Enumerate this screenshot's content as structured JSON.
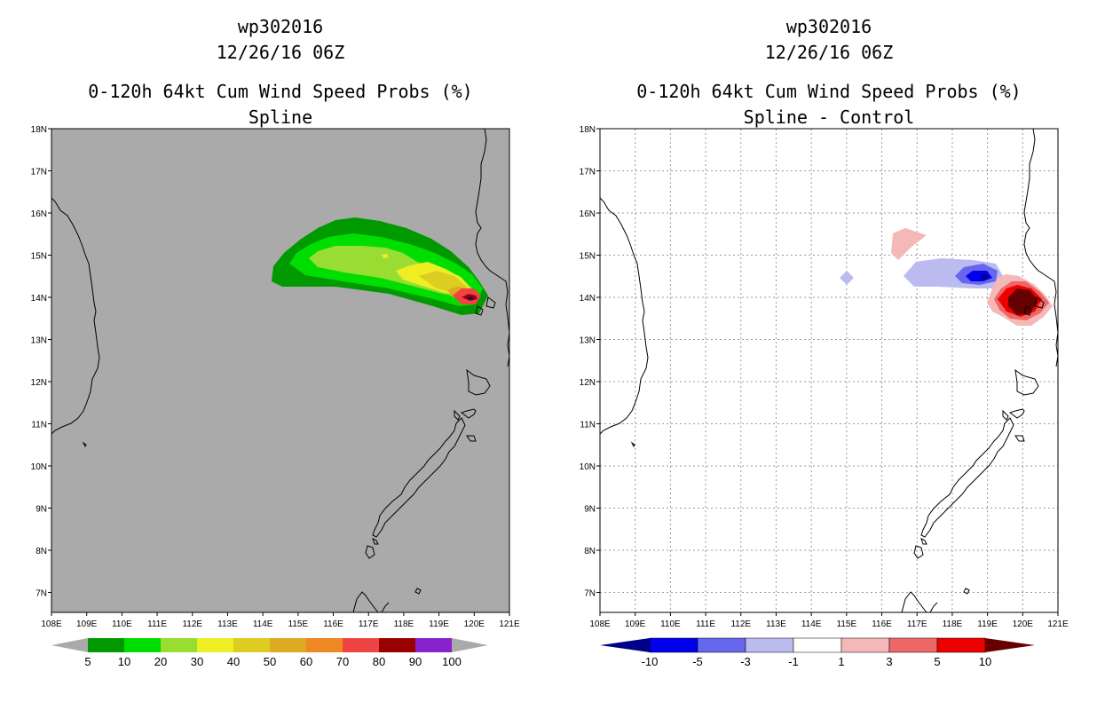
{
  "left_panel": {
    "title_lines": [
      "wp302016",
      "12/26/16 06Z",
      "0-120h 64kt Cum Wind Speed Probs (%)",
      "Spline"
    ],
    "legend": {
      "labels": [
        "5",
        "10",
        "20",
        "30",
        "40",
        "50",
        "60",
        "70",
        "80",
        "90",
        "100"
      ],
      "colors": [
        "#009900",
        "#00dd00",
        "#99dd33",
        "#eeee22",
        "#ddcc22",
        "#ddaa22",
        "#ee8822",
        "#ee4444",
        "#990000",
        "#8822cc"
      ],
      "end_color": "#aaaaaa"
    }
  },
  "right_panel": {
    "title_lines": [
      "wp302016",
      "12/26/16 06Z",
      "0-120h 64kt Cum Wind Speed Probs (%)",
      "Spline - Control"
    ],
    "legend": {
      "labels": [
        "-10",
        "-5",
        "-3",
        "-1",
        "1",
        "3",
        "5",
        "10"
      ],
      "colors": [
        "#0000ee",
        "#6666ee",
        "#bbbbf0",
        "#ffffff",
        "#f5b8b8",
        "#ee6666",
        "#ee0000"
      ],
      "low_color": "#000088",
      "high_color": "#660000"
    }
  },
  "map": {
    "x_ticks": [
      "108E",
      "109E",
      "110E",
      "111E",
      "112E",
      "113E",
      "114E",
      "115E",
      "116E",
      "117E",
      "118E",
      "119E",
      "120E",
      "121E"
    ],
    "y_ticks": [
      "18N",
      "17N",
      "16N",
      "15N",
      "14N",
      "13N",
      "12N",
      "11N",
      "10N",
      "9N",
      "8N",
      "7N"
    ]
  },
  "colors": {
    "land_gray": "#aaaaaa",
    "coast": "#000000",
    "grid": "#999999"
  }
}
